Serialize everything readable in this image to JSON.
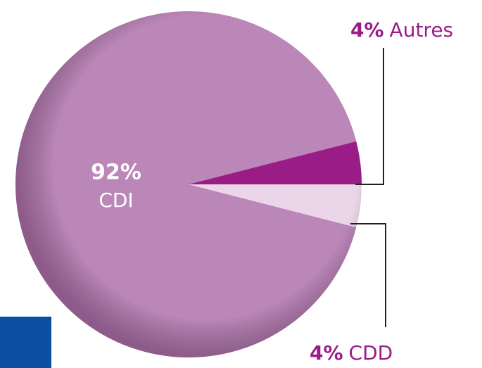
{
  "chart_data": {
    "type": "pie",
    "categories": [
      "CDI",
      "Autres",
      "CDD"
    ],
    "values": [
      92,
      4,
      4
    ],
    "value_labels": [
      "92%",
      "4%",
      "4%"
    ],
    "colors": [
      "#bb86b8",
      "#9a1d87",
      "#ead6e8"
    ]
  }
}
